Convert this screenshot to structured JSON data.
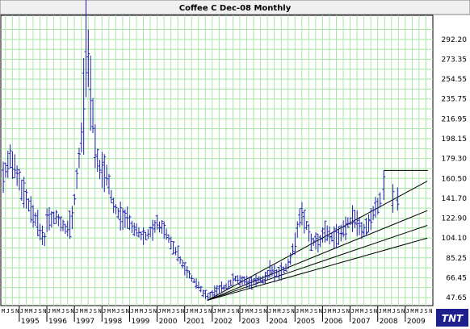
{
  "chart_data": {
    "type": "ohlc-bar",
    "title": "Coffee C Dec-08  Monthly",
    "logo": "TNT",
    "y_ticks": [
      "47.65",
      "66.45",
      "85.25",
      "104.10",
      "122.90",
      "141.70",
      "160.50",
      "179.30",
      "198.15",
      "216.95",
      "235.75",
      "254.55",
      "273.35",
      "292.20"
    ],
    "ylim": [
      40,
      315
    ],
    "xlim": [
      1994.33,
      2010.0
    ],
    "x_year_labels": [
      "1995",
      "1996",
      "1997",
      "1998",
      "1999",
      "2000",
      "2001",
      "2002",
      "2003",
      "2004",
      "2005",
      "2006",
      "2007",
      "2008",
      "2009"
    ],
    "month_initials": "JFMAMJJASOND",
    "grid": true,
    "bar_color": "#1e1eaa",
    "grid_color": "#a8e6a8",
    "background_color": "#ffffff",
    "anchors": [
      [
        1994.4,
        165
      ],
      [
        1994.7,
        180
      ],
      [
        1994.9,
        165
      ],
      [
        1995.1,
        150
      ],
      [
        1995.3,
        140
      ],
      [
        1995.5,
        125
      ],
      [
        1995.7,
        115
      ],
      [
        1995.9,
        100
      ],
      [
        1996.0,
        120
      ],
      [
        1996.3,
        125
      ],
      [
        1996.5,
        118
      ],
      [
        1996.7,
        112
      ],
      [
        1996.9,
        118
      ],
      [
        1997.0,
        140
      ],
      [
        1997.2,
        185
      ],
      [
        1997.35,
        235
      ],
      [
        1997.45,
        300
      ],
      [
        1997.6,
        240
      ],
      [
        1997.8,
        175
      ],
      [
        1998.0,
        170
      ],
      [
        1998.2,
        160
      ],
      [
        1998.4,
        135
      ],
      [
        1998.6,
        128
      ],
      [
        1998.8,
        122
      ],
      [
        1999.0,
        118
      ],
      [
        1999.2,
        112
      ],
      [
        1999.5,
        105
      ],
      [
        1999.8,
        110
      ],
      [
        2000.0,
        118
      ],
      [
        2000.2,
        112
      ],
      [
        2000.5,
        100
      ],
      [
        2000.8,
        85
      ],
      [
        2001.0,
        75
      ],
      [
        2001.3,
        65
      ],
      [
        2001.6,
        55
      ],
      [
        2001.8,
        48
      ],
      [
        2002.0,
        52
      ],
      [
        2002.3,
        56
      ],
      [
        2002.6,
        60
      ],
      [
        2002.8,
        66
      ],
      [
        2003.0,
        64
      ],
      [
        2003.3,
        62
      ],
      [
        2003.6,
        64
      ],
      [
        2003.9,
        65
      ],
      [
        2004.1,
        75
      ],
      [
        2004.3,
        70
      ],
      [
        2004.6,
        74
      ],
      [
        2004.8,
        82
      ],
      [
        2005.0,
        100
      ],
      [
        2005.2,
        128
      ],
      [
        2005.4,
        118
      ],
      [
        2005.6,
        100
      ],
      [
        2005.9,
        100
      ],
      [
        2006.1,
        112
      ],
      [
        2006.3,
        105
      ],
      [
        2006.6,
        105
      ],
      [
        2006.9,
        118
      ],
      [
        2007.1,
        122
      ],
      [
        2007.3,
        115
      ],
      [
        2007.5,
        112
      ],
      [
        2007.8,
        125
      ],
      [
        2008.0,
        135
      ],
      [
        2008.2,
        150
      ],
      [
        2008.35,
        140
      ],
      [
        2008.5,
        135
      ],
      [
        2008.7,
        138
      ]
    ],
    "highlight_bars": [
      {
        "x": 2008.22,
        "high": 168,
        "low": 140,
        "open": 150,
        "close": 162
      },
      {
        "x": 2008.55,
        "high": 155,
        "low": 128,
        "open": 135,
        "close": 148
      },
      {
        "x": 2008.72,
        "high": 152,
        "low": 130,
        "open": 140,
        "close": 136
      }
    ],
    "resistance": {
      "x1": 2008.22,
      "x2": 2009.82,
      "y": 168
    },
    "trendlines": [
      {
        "x1": 2001.82,
        "y1": 45,
        "x2": 2009.8,
        "y2": 158
      },
      {
        "x1": 2001.82,
        "y1": 45,
        "x2": 2009.8,
        "y2": 130
      },
      {
        "x1": 2001.82,
        "y1": 45,
        "x2": 2009.8,
        "y2": 116
      },
      {
        "x1": 2001.82,
        "y1": 45,
        "x2": 2009.8,
        "y2": 104
      }
    ]
  }
}
